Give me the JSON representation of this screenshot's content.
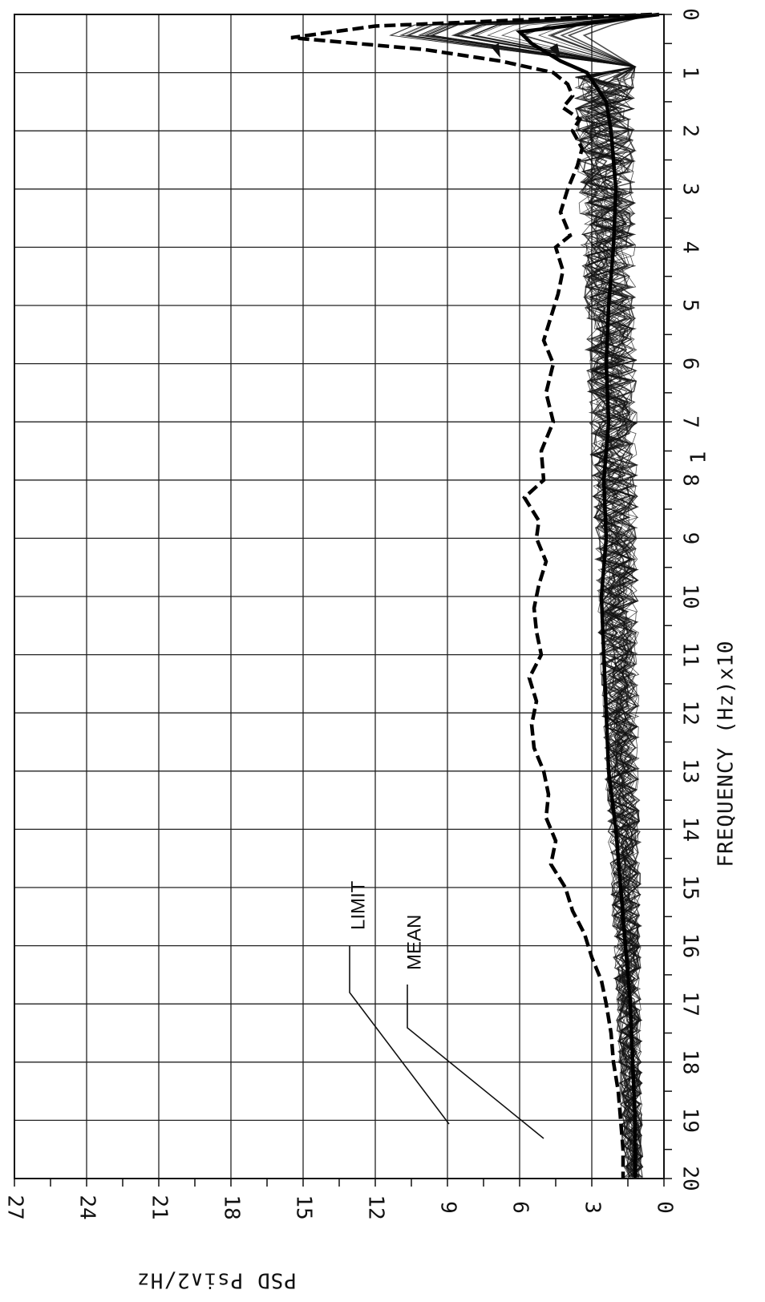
{
  "chart_data": {
    "type": "line",
    "orientation": "rotated-90-clockwise",
    "xlabel": "FREQUENCY (Hz)x10",
    "xlabel_exponent": "1",
    "ylabel": "PSD Psi^2/Hz",
    "x_ticks": [
      "0",
      "1",
      "2",
      "3",
      "4",
      "5",
      "6",
      "7",
      "8",
      "9",
      "10",
      "11",
      "12",
      "13",
      "14",
      "15",
      "16",
      "17",
      "18",
      "19",
      "20"
    ],
    "y_ticks": [
      "0",
      "3",
      "6",
      "9",
      "12",
      "15",
      "18",
      "21",
      "24",
      "27"
    ],
    "xlim": [
      0,
      20
    ],
    "ylim": [
      0,
      27
    ],
    "grid": true,
    "annotations": [
      {
        "text": "LIMIT",
        "points_to": {
          "x": 0.8,
          "y": 6.8
        }
      },
      {
        "text": "MEAN",
        "points_to": {
          "x": 0.8,
          "y": 4.3
        }
      }
    ],
    "series": [
      {
        "name": "LIMIT",
        "style": "dashed-bold",
        "x": [
          0,
          0.2,
          0.4,
          0.6,
          0.8,
          1.0,
          1.2,
          1.4,
          1.6,
          1.8,
          2.0,
          2.3,
          2.6,
          3.0,
          3.4,
          3.8,
          4.0,
          4.4,
          4.8,
          5.2,
          5.6,
          6.0,
          6.5,
          7.0,
          7.5,
          8.0,
          8.3,
          8.7,
          9.0,
          9.4,
          9.8,
          10.2,
          10.6,
          11.0,
          11.4,
          11.8,
          12.2,
          12.6,
          13.0,
          13.4,
          13.8,
          14.2,
          14.6,
          15.0,
          15.4,
          15.8,
          16.2,
          16.6,
          17.0,
          17.5,
          18.0,
          18.5,
          19.0,
          19.5,
          20.0
        ],
        "y": [
          0.5,
          12.0,
          15.5,
          10.0,
          6.8,
          4.6,
          4.0,
          3.8,
          4.2,
          3.5,
          3.8,
          3.4,
          3.6,
          4.0,
          4.3,
          3.9,
          4.5,
          4.2,
          4.4,
          4.7,
          5.0,
          4.6,
          4.9,
          4.6,
          5.1,
          5.0,
          5.8,
          5.2,
          5.3,
          4.9,
          5.2,
          5.4,
          5.3,
          5.1,
          5.6,
          5.3,
          5.5,
          5.4,
          5.0,
          4.8,
          4.9,
          4.5,
          4.7,
          4.1,
          3.8,
          3.3,
          3.0,
          2.6,
          2.4,
          2.2,
          2.1,
          1.9,
          1.8,
          1.7,
          1.7
        ]
      },
      {
        "name": "MEAN",
        "style": "solid-bold",
        "x": [
          0,
          0.3,
          0.5,
          0.8,
          1.0,
          1.5,
          2.0,
          3.0,
          4.0,
          5.0,
          6.0,
          7.0,
          8.0,
          9.0,
          10.0,
          11.0,
          12.0,
          13.0,
          14.0,
          15.0,
          16.0,
          17.0,
          18.0,
          19.0,
          20.0
        ],
        "y": [
          0.2,
          6.0,
          5.5,
          4.3,
          3.2,
          2.4,
          2.2,
          2.0,
          2.1,
          2.3,
          2.4,
          2.3,
          2.5,
          2.4,
          2.6,
          2.5,
          2.4,
          2.3,
          2.0,
          1.8,
          1.6,
          1.4,
          1.3,
          1.2,
          1.2
        ]
      }
    ]
  }
}
